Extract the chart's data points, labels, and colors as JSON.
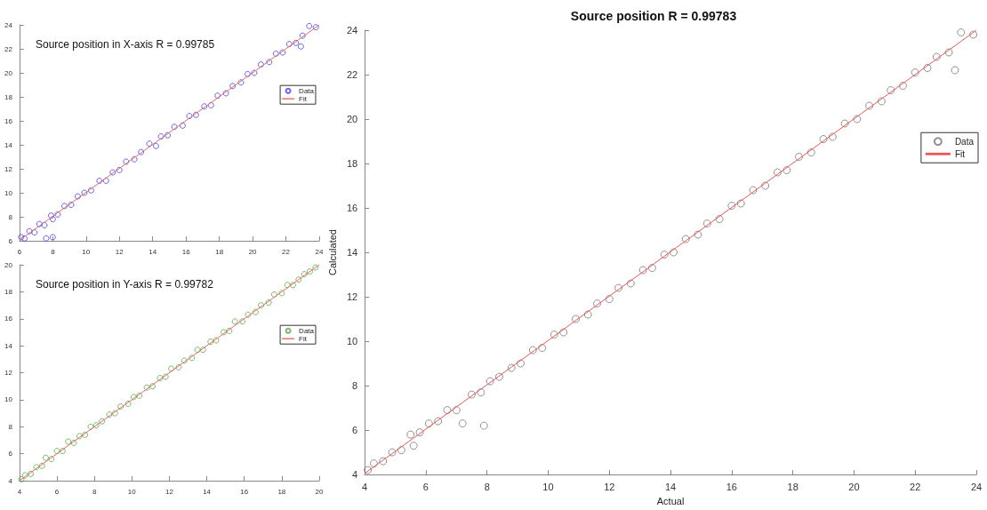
{
  "chart_data": [
    {
      "type": "scatter",
      "annotations": [
        "Source position in X-axis R = 0.99785"
      ],
      "xlim": [
        6,
        24
      ],
      "ylim": [
        6,
        24
      ],
      "xticks": [
        6,
        8,
        10,
        12,
        14,
        16,
        18,
        20,
        22,
        24
      ],
      "yticks": [
        6,
        8,
        10,
        12,
        14,
        16,
        18,
        20,
        22,
        24
      ],
      "legend": "top right",
      "grid": false,
      "series": [
        {
          "name": "Data",
          "marker": "circle",
          "color": "#4040ee",
          "x": [
            6.1,
            6.3,
            6.6,
            6.9,
            7.2,
            7.5,
            7.6,
            7.9,
            8.0,
            8.0,
            8.3,
            8.7,
            9.1,
            9.5,
            9.9,
            10.3,
            10.8,
            11.2,
            11.6,
            12.0,
            12.4,
            12.9,
            13.3,
            13.8,
            14.2,
            14.5,
            14.9,
            15.3,
            15.8,
            16.2,
            16.6,
            17.1,
            17.5,
            17.9,
            18.4,
            18.8,
            19.3,
            19.7,
            20.1,
            20.5,
            21.0,
            21.4,
            21.8,
            22.2,
            22.6,
            22.9,
            23.0,
            23.4,
            23.8
          ],
          "values": [
            6.3,
            6.2,
            6.8,
            6.7,
            7.4,
            7.3,
            6.2,
            8.1,
            6.3,
            7.8,
            8.2,
            8.9,
            9.0,
            9.7,
            10.0,
            10.2,
            11.0,
            11.0,
            11.7,
            11.9,
            12.6,
            12.8,
            13.4,
            14.1,
            13.9,
            14.7,
            14.8,
            15.5,
            15.6,
            16.4,
            16.5,
            17.2,
            17.3,
            18.1,
            18.3,
            18.9,
            19.2,
            19.9,
            20.0,
            20.7,
            20.9,
            21.6,
            21.7,
            22.4,
            22.5,
            22.2,
            23.1,
            23.9,
            23.8
          ]
        },
        {
          "name": "Fit",
          "type": "line",
          "color": "#ee6666",
          "x": [
            6,
            24
          ],
          "values": [
            6.05,
            24
          ]
        }
      ]
    },
    {
      "type": "scatter",
      "annotations": [
        "Source position in Y-axis R = 0.99782"
      ],
      "xlim": [
        4,
        20
      ],
      "ylim": [
        4,
        20
      ],
      "xticks": [
        4,
        6,
        8,
        10,
        12,
        14,
        16,
        18,
        20
      ],
      "yticks": [
        4,
        6,
        8,
        10,
        12,
        14,
        16,
        18,
        20
      ],
      "legend": "top right",
      "grid": false,
      "series": [
        {
          "name": "Data",
          "marker": "circle",
          "color": "#55aa44",
          "x": [
            4.1,
            4.3,
            4.6,
            4.9,
            5.2,
            5.4,
            5.7,
            6.0,
            6.3,
            6.6,
            6.9,
            7.2,
            7.5,
            7.8,
            8.1,
            8.4,
            8.8,
            9.1,
            9.4,
            9.8,
            10.1,
            10.4,
            10.8,
            11.1,
            11.5,
            11.8,
            12.1,
            12.5,
            12.8,
            13.2,
            13.5,
            13.8,
            14.2,
            14.5,
            14.9,
            15.2,
            15.5,
            15.9,
            16.2,
            16.6,
            16.9,
            17.3,
            17.6,
            18.0,
            18.3,
            18.6,
            18.9,
            19.2,
            19.5,
            19.8
          ],
          "values": [
            4.1,
            4.4,
            4.5,
            5.0,
            5.1,
            5.7,
            5.6,
            6.2,
            6.2,
            6.9,
            6.8,
            7.3,
            7.4,
            8.0,
            8.1,
            8.4,
            8.9,
            9.0,
            9.5,
            9.7,
            10.2,
            10.3,
            10.9,
            11.0,
            11.6,
            11.7,
            12.3,
            12.4,
            12.9,
            13.1,
            13.7,
            13.7,
            14.3,
            14.4,
            15.0,
            15.1,
            15.8,
            15.8,
            16.3,
            16.5,
            17.0,
            17.2,
            17.8,
            17.9,
            18.5,
            18.5,
            18.9,
            19.3,
            19.5,
            19.8
          ]
        },
        {
          "name": "Fit",
          "type": "line",
          "color": "#ee6666",
          "x": [
            4,
            20
          ],
          "values": [
            4,
            20
          ]
        }
      ]
    },
    {
      "type": "scatter",
      "title": "Source position R = 0.99783",
      "xlabel": "Actual",
      "ylabel": "Calculated",
      "xlim": [
        4,
        24
      ],
      "ylim": [
        4,
        24
      ],
      "xticks": [
        4,
        6,
        8,
        10,
        12,
        14,
        16,
        18,
        20,
        22,
        24
      ],
      "yticks": [
        4,
        6,
        8,
        10,
        12,
        14,
        16,
        18,
        20,
        22,
        24
      ],
      "legend": "top right",
      "grid": false,
      "series": [
        {
          "name": "Data",
          "marker": "circle",
          "color": "#777777",
          "x": [
            4.1,
            4.3,
            4.6,
            4.9,
            5.2,
            5.5,
            5.6,
            5.8,
            6.1,
            6.4,
            6.7,
            7.0,
            7.2,
            7.5,
            7.8,
            7.9,
            8.1,
            8.4,
            8.8,
            9.1,
            9.5,
            9.8,
            10.2,
            10.5,
            10.9,
            11.3,
            11.6,
            12.0,
            12.3,
            12.7,
            13.1,
            13.4,
            13.8,
            14.1,
            14.5,
            14.9,
            15.2,
            15.6,
            16.0,
            16.3,
            16.7,
            17.1,
            17.5,
            17.8,
            18.2,
            18.6,
            19.0,
            19.3,
            19.7,
            20.1,
            20.5,
            20.9,
            21.2,
            21.6,
            22.0,
            22.4,
            22.7,
            23.1,
            23.3,
            23.5,
            23.9
          ],
          "values": [
            4.2,
            4.5,
            4.6,
            5.0,
            5.1,
            5.8,
            5.3,
            5.9,
            6.3,
            6.4,
            6.9,
            6.9,
            6.3,
            7.6,
            7.7,
            6.2,
            8.2,
            8.4,
            8.8,
            9.0,
            9.6,
            9.7,
            10.3,
            10.4,
            11.0,
            11.2,
            11.7,
            11.9,
            12.4,
            12.6,
            13.2,
            13.3,
            13.9,
            14.0,
            14.6,
            14.8,
            15.3,
            15.5,
            16.1,
            16.2,
            16.8,
            17.0,
            17.6,
            17.7,
            18.3,
            18.5,
            19.1,
            19.2,
            19.8,
            20.0,
            20.6,
            20.8,
            21.3,
            21.5,
            22.1,
            22.3,
            22.8,
            23.0,
            22.2,
            23.9,
            23.8
          ]
        },
        {
          "name": "Fit",
          "type": "line",
          "color": "#ee5555",
          "x": [
            4,
            24
          ],
          "values": [
            4.05,
            24
          ]
        }
      ]
    }
  ]
}
